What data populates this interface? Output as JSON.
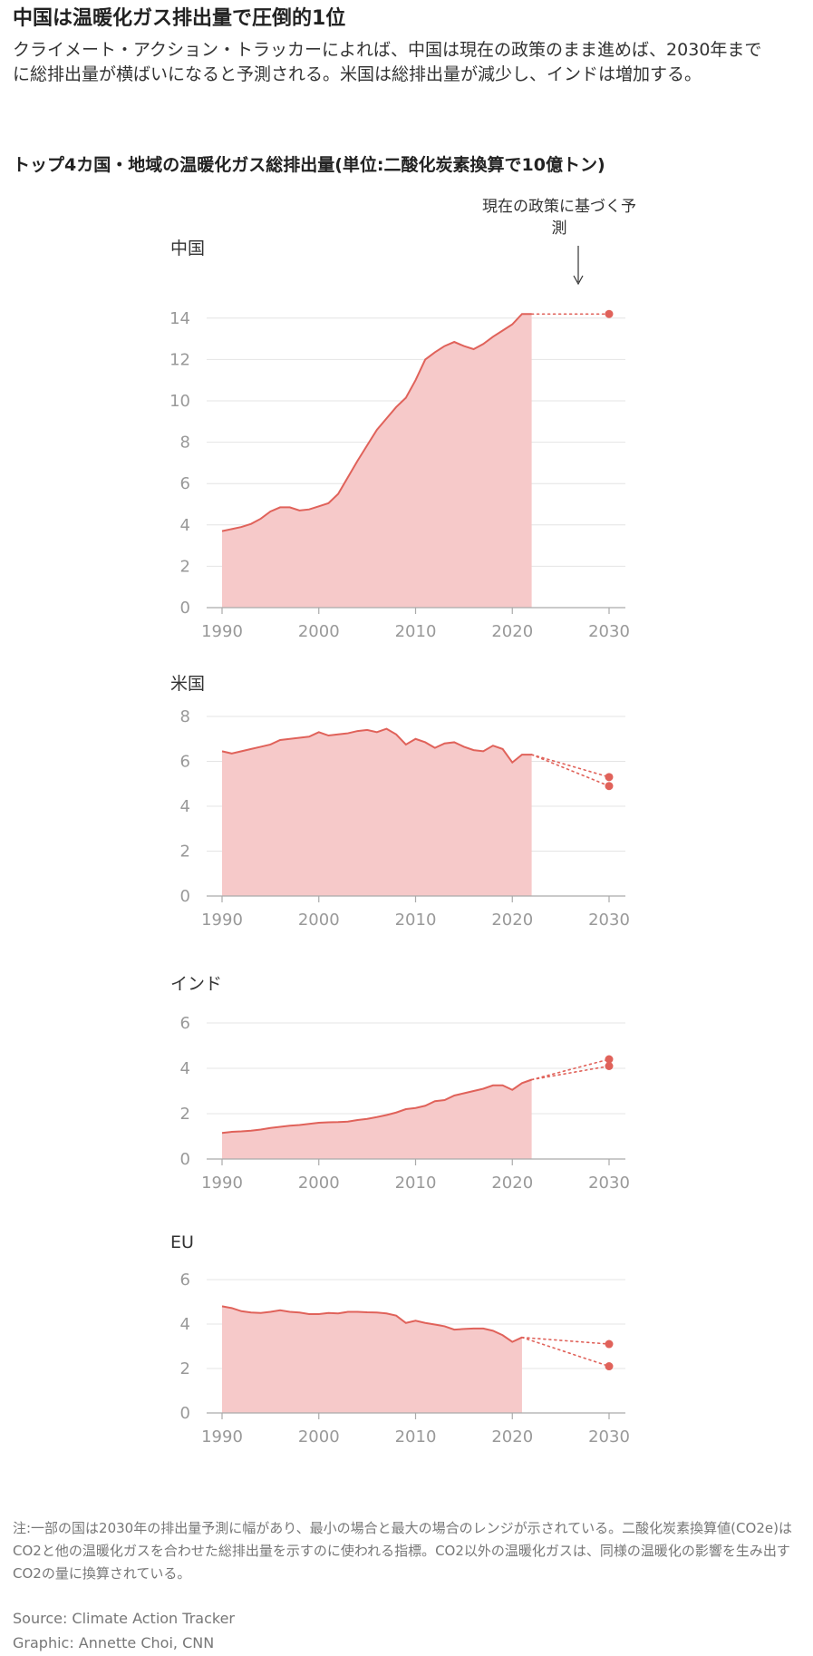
{
  "headline": "中国は温暖化ガス排出量で圧倒的1位",
  "dek": "クライメート・アクション・トラッカーによれば、中国は現在の政策のまま進めば、2030年までに総排出量が横ばいになると予測される。米国は総排出量が減少し、インドは増加する。",
  "subhead": "トップ4カ国・地域の温暖化ガス総排出量(単位:二酸化炭素換算で10億トン)",
  "annotation": "現在の政策に基づく予測",
  "colors": {
    "fill": "#f6c9c9",
    "line": "#e0625a",
    "grid": "#e4e4e4",
    "axis": "#aaaaaa",
    "tick": "#999999"
  },
  "chart_data": [
    {
      "type": "area",
      "title": "中国",
      "x": [
        1990,
        1991,
        1992,
        1993,
        1994,
        1995,
        1996,
        1997,
        1998,
        1999,
        2000,
        2001,
        2002,
        2003,
        2004,
        2005,
        2006,
        2007,
        2008,
        2009,
        2010,
        2011,
        2012,
        2013,
        2014,
        2015,
        2016,
        2017,
        2018,
        2019,
        2020,
        2021,
        2022
      ],
      "values": [
        3.7,
        3.8,
        3.9,
        4.05,
        4.3,
        4.65,
        4.85,
        4.85,
        4.7,
        4.75,
        4.9,
        5.05,
        5.5,
        6.3,
        7.1,
        7.85,
        8.6,
        9.15,
        9.7,
        10.15,
        11.0,
        12.0,
        12.35,
        12.65,
        12.85,
        12.65,
        12.5,
        12.75,
        13.1,
        13.4,
        13.7,
        14.2,
        14.2
      ],
      "projection": [
        {
          "x": [
            2022,
            2030
          ],
          "values": [
            14.2,
            14.2
          ]
        }
      ],
      "ylim": [
        0,
        15
      ],
      "yticks": [
        0,
        2,
        4,
        6,
        8,
        10,
        12,
        14
      ],
      "xticks": [
        1990,
        2000,
        2010,
        2020,
        2030
      ]
    },
    {
      "type": "area",
      "title": "米国",
      "x": [
        1990,
        1991,
        1992,
        1993,
        1994,
        1995,
        1996,
        1997,
        1998,
        1999,
        2000,
        2001,
        2002,
        2003,
        2004,
        2005,
        2006,
        2007,
        2008,
        2009,
        2010,
        2011,
        2012,
        2013,
        2014,
        2015,
        2016,
        2017,
        2018,
        2019,
        2020,
        2021,
        2022
      ],
      "values": [
        6.45,
        6.35,
        6.45,
        6.55,
        6.65,
        6.75,
        6.95,
        7.0,
        7.05,
        7.1,
        7.3,
        7.15,
        7.2,
        7.25,
        7.35,
        7.4,
        7.3,
        7.45,
        7.2,
        6.75,
        7.0,
        6.85,
        6.6,
        6.8,
        6.85,
        6.65,
        6.5,
        6.45,
        6.7,
        6.55,
        5.95,
        6.3,
        6.3
      ],
      "projection": [
        {
          "x": [
            2022,
            2030
          ],
          "values": [
            6.3,
            5.3
          ]
        },
        {
          "x": [
            2022,
            2030
          ],
          "values": [
            6.3,
            4.9
          ]
        }
      ],
      "ylim": [
        0,
        8
      ],
      "yticks": [
        0,
        2,
        4,
        6,
        8
      ],
      "xticks": [
        1990,
        2000,
        2010,
        2020,
        2030
      ]
    },
    {
      "type": "area",
      "title": "インド",
      "x": [
        1990,
        1991,
        1992,
        1993,
        1994,
        1995,
        1996,
        1997,
        1998,
        1999,
        2000,
        2001,
        2002,
        2003,
        2004,
        2005,
        2006,
        2007,
        2008,
        2009,
        2010,
        2011,
        2012,
        2013,
        2014,
        2015,
        2016,
        2017,
        2018,
        2019,
        2020,
        2021,
        2022
      ],
      "values": [
        1.15,
        1.2,
        1.22,
        1.25,
        1.3,
        1.37,
        1.42,
        1.47,
        1.5,
        1.55,
        1.6,
        1.62,
        1.63,
        1.65,
        1.72,
        1.77,
        1.85,
        1.94,
        2.05,
        2.2,
        2.25,
        2.35,
        2.55,
        2.6,
        2.8,
        2.9,
        3.0,
        3.1,
        3.25,
        3.25,
        3.05,
        3.35,
        3.5
      ],
      "projection": [
        {
          "x": [
            2022,
            2030
          ],
          "values": [
            3.5,
            4.4
          ]
        },
        {
          "x": [
            2022,
            2030
          ],
          "values": [
            3.5,
            4.1
          ]
        }
      ],
      "ylim": [
        0,
        6
      ],
      "yticks": [
        0,
        2,
        4,
        6
      ],
      "xticks": [
        1990,
        2000,
        2010,
        2020,
        2030
      ]
    },
    {
      "type": "area",
      "title": "EU",
      "x": [
        1990,
        1991,
        1992,
        1993,
        1994,
        1995,
        1996,
        1997,
        1998,
        1999,
        2000,
        2001,
        2002,
        2003,
        2004,
        2005,
        2006,
        2007,
        2008,
        2009,
        2010,
        2011,
        2012,
        2013,
        2014,
        2015,
        2016,
        2017,
        2018,
        2019,
        2020,
        2021
      ],
      "values": [
        4.8,
        4.72,
        4.58,
        4.52,
        4.5,
        4.55,
        4.62,
        4.55,
        4.52,
        4.45,
        4.45,
        4.5,
        4.48,
        4.55,
        4.55,
        4.53,
        4.52,
        4.48,
        4.38,
        4.05,
        4.15,
        4.05,
        3.98,
        3.9,
        3.75,
        3.78,
        3.8,
        3.8,
        3.7,
        3.5,
        3.2,
        3.4
      ],
      "projection": [
        {
          "x": [
            2021,
            2030
          ],
          "values": [
            3.4,
            3.1
          ]
        },
        {
          "x": [
            2021,
            2030
          ],
          "values": [
            3.4,
            2.1
          ]
        }
      ],
      "ylim": [
        0,
        6
      ],
      "yticks": [
        0,
        2,
        4,
        6
      ],
      "xticks": [
        1990,
        2000,
        2010,
        2020,
        2030
      ]
    }
  ],
  "note": "注:一部の国は2030年の排出量予測に幅があり、最小の場合と最大の場合のレンジが示されている。二酸化炭素換算値(CO2e)はCO2と他の温暖化ガスを合わせた総排出量を示すのに使われる指標。CO2以外の温暖化ガスは、同様の温暖化の影響を生み出すCO2の量に換算されている。",
  "source": "Source: Climate Action Tracker",
  "graphic": "Graphic: Annette Choi, CNN"
}
